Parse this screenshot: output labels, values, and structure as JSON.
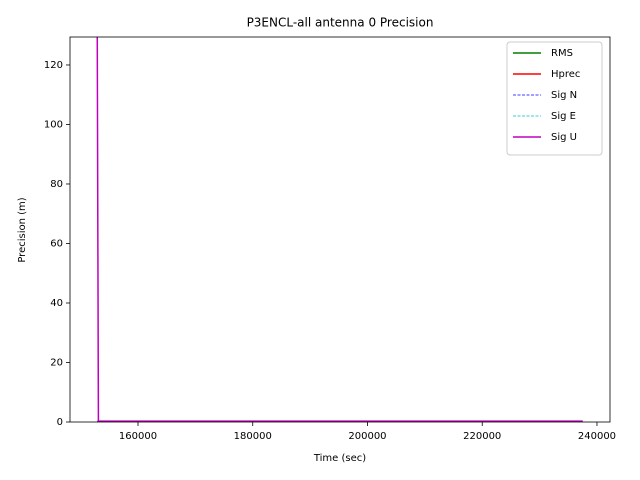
{
  "chart_data": {
    "type": "line",
    "title": "P3ENCL-all antenna 0 Precision",
    "x_label": "Time (sec)",
    "y_label": "Precision (m)",
    "x": [
      152900,
      153100,
      237500
    ],
    "series": [
      {
        "name": "RMS",
        "color": "#008000",
        "style": "solid",
        "values": [
          0.1,
          0.1,
          0.1
        ]
      },
      {
        "name": "Hprec",
        "color": "#ff0000",
        "style": "solid",
        "values": [
          0.2,
          0.2,
          0.2
        ]
      },
      {
        "name": "Sig N",
        "color": "#0000ff",
        "style": "dashed",
        "values": [
          0.1,
          0.1,
          0.1
        ]
      },
      {
        "name": "Sig E",
        "color": "#00bfbf",
        "style": "dashed",
        "values": [
          0.1,
          0.1,
          0.1
        ]
      },
      {
        "name": "Sig U",
        "color": "#bf00bf",
        "style": "solid",
        "values": [
          130,
          0.3,
          0.3
        ]
      }
    ],
    "xlim": [
      148150,
      242270
    ],
    "ylim": [
      0,
      129.4
    ],
    "xticks": [
      160000,
      180000,
      200000,
      220000,
      240000
    ],
    "yticks": [
      0,
      20,
      40,
      60,
      80,
      100,
      120
    ],
    "legend": "upper right"
  }
}
